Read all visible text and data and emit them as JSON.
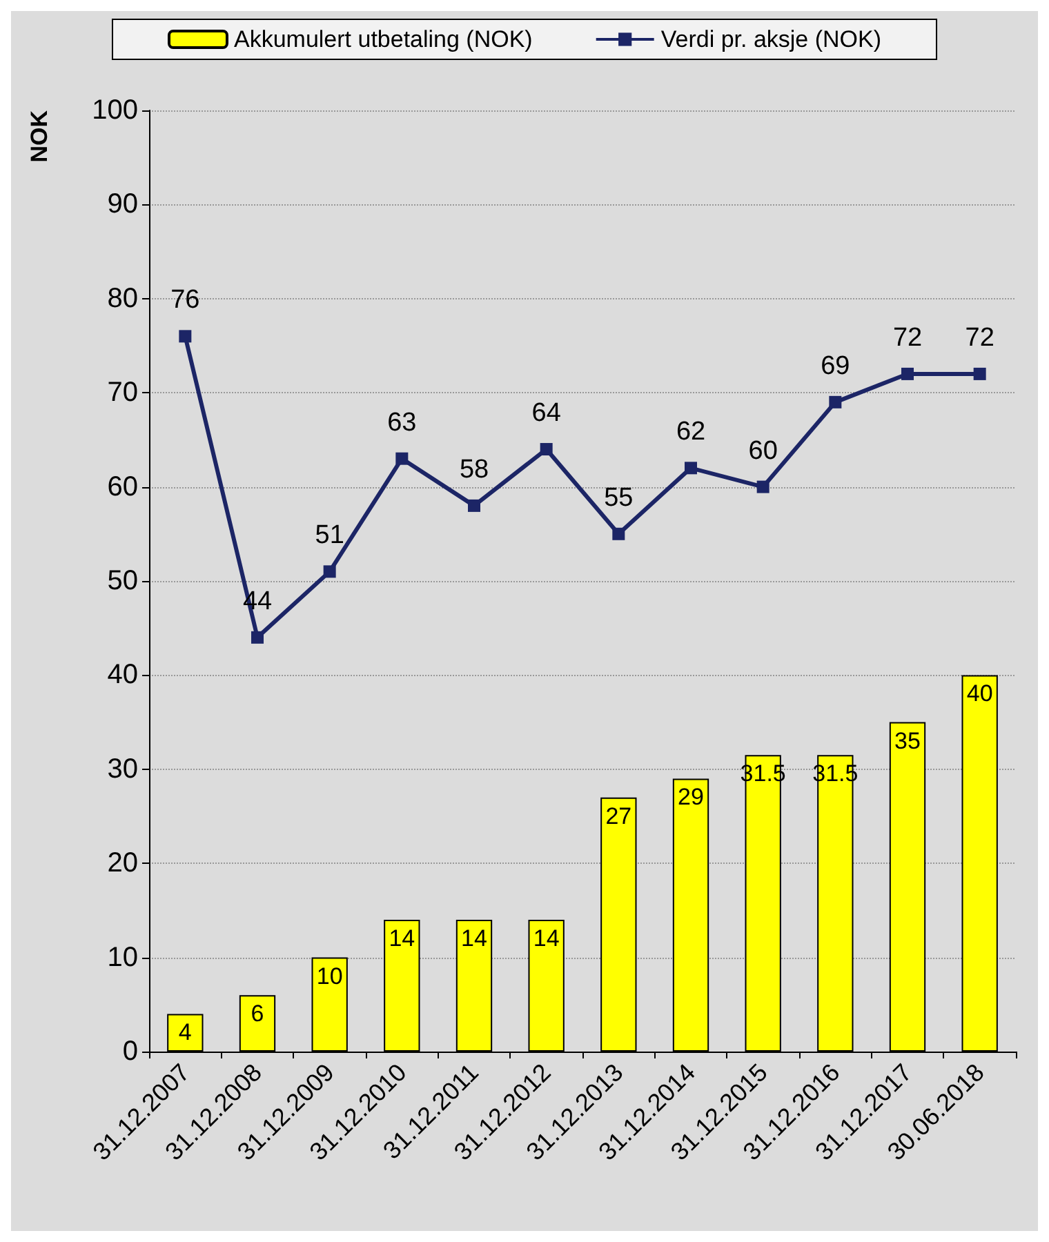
{
  "chart_data": {
    "type": "bar",
    "ylabel": "NOK",
    "categories": [
      "31.12.2007",
      "31.12.2008",
      "31.12.2009",
      "31.12.2010",
      "31.12.2011",
      "31.12.2012",
      "31.12.2013",
      "31.12.2014",
      "31.12.2015",
      "31.12.2016",
      "31.12.2017",
      "30.06.2018"
    ],
    "series": [
      {
        "name": "Akkumulert utbetaling (NOK)",
        "color": "#ffff00",
        "values": [
          4,
          6,
          10,
          14,
          14,
          14,
          27,
          29,
          31.5,
          31.5,
          35,
          40
        ]
      },
      {
        "name": "Verdi pr. aksje (NOK)",
        "type": "line",
        "color": "#1c2566",
        "values": [
          76,
          44,
          51,
          63,
          58,
          64,
          55,
          62,
          60,
          69,
          72,
          72
        ]
      }
    ],
    "ylim": [
      0,
      100
    ],
    "yticks": [
      0,
      10,
      20,
      30,
      40,
      50,
      60,
      70,
      80,
      90,
      100
    ],
    "grid": "y",
    "legend": "top",
    "marker": "square",
    "line_style": "solid",
    "data_labels": true
  }
}
